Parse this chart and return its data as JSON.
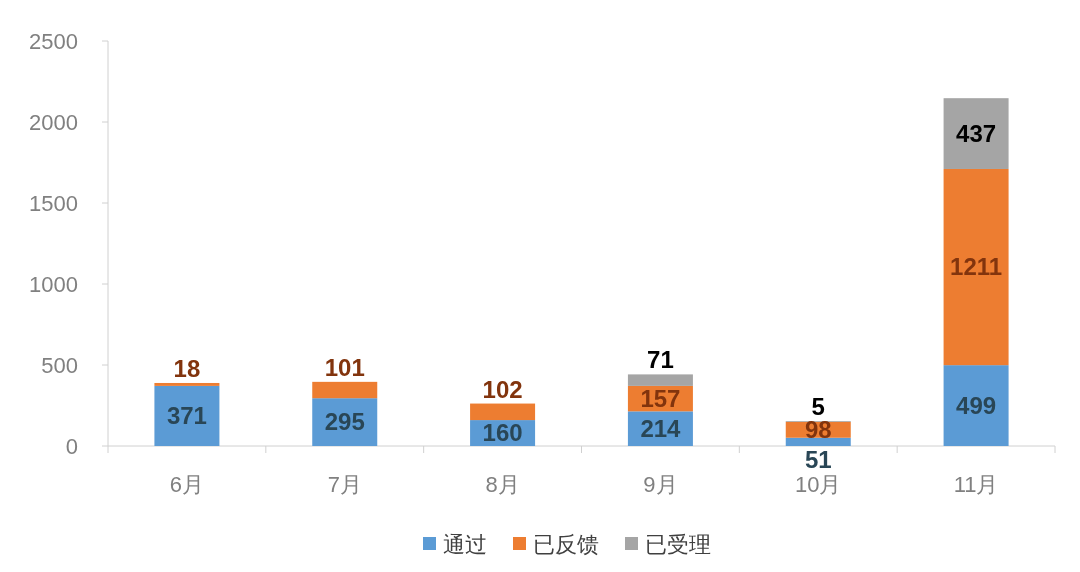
{
  "chart_data": {
    "type": "bar",
    "stacked": true,
    "categories": [
      "6月",
      "7月",
      "8月",
      "9月",
      "10月",
      "11月"
    ],
    "series": [
      {
        "name": "通过",
        "color": "#5b9bd5",
        "values": [
          371,
          295,
          160,
          214,
          51,
          499
        ]
      },
      {
        "name": "已反馈",
        "color": "#ed7d31",
        "values": [
          18,
          101,
          102,
          157,
          98,
          1211
        ]
      },
      {
        "name": "已受理",
        "color": "#a5a5a5",
        "values": [
          null,
          null,
          null,
          71,
          5,
          437
        ]
      }
    ],
    "ylim": [
      0,
      2500
    ],
    "yticks": [
      0,
      500,
      1000,
      1500,
      2000,
      2500
    ],
    "data_labels": true,
    "legend": "bottom",
    "grid": false
  }
}
